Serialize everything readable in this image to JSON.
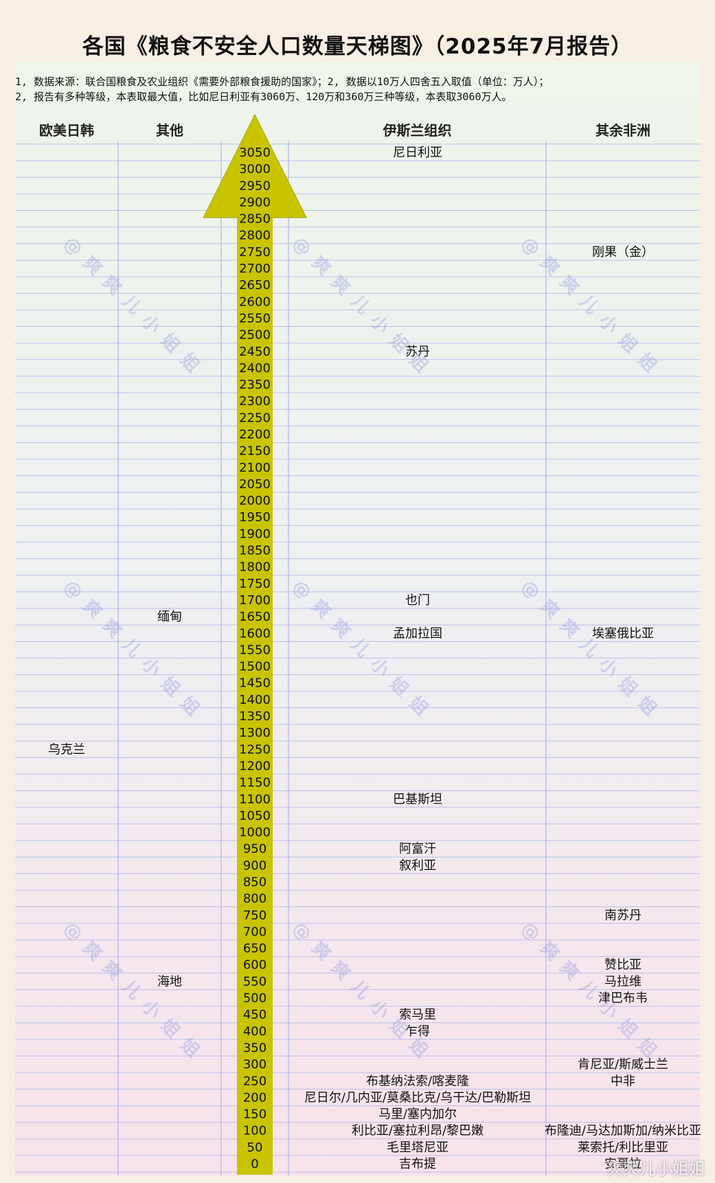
{
  "title": "各国《粮食不安全人口数量天梯图》（2025年7月报告）",
  "notes": [
    "1, 数据来源：联合国粮食及农业组织《需要外部粮食援助的国家》；2, 数据以10万人四舍五入取值（单位：万人）；",
    "2, 报告有多种等级，本表取最大值，比如尼日利亚有3060万、120万和360万三种等级，本表取3060万人。"
  ],
  "columns": [
    "欧美日韩",
    "其他",
    "伊斯兰组织",
    "其余非洲"
  ],
  "watermark": "@爽爽儿小姐姐",
  "footer_watermark": "爽爽儿小姐姐",
  "colors": {
    "arrow": "#c8c400",
    "arrow_edge": "#a8a400",
    "grid_line": "#b8bfe6",
    "column_line": "#a3a8e0"
  },
  "chart_data": {
    "type": "table",
    "axis": {
      "ticks": [
        0,
        50,
        100,
        150,
        200,
        250,
        300,
        350,
        400,
        450,
        500,
        550,
        600,
        650,
        700,
        750,
        800,
        850,
        900,
        950,
        1000,
        1050,
        1100,
        1150,
        1200,
        1250,
        1300,
        1350,
        1400,
        1450,
        1500,
        1550,
        1600,
        1650,
        1700,
        1750,
        1800,
        1850,
        1900,
        1950,
        2000,
        2050,
        2100,
        2150,
        2200,
        2250,
        2300,
        2350,
        2400,
        2450,
        2500,
        2550,
        2600,
        2650,
        2700,
        2750,
        2800,
        2850,
        2900,
        2950,
        3000,
        3050
      ],
      "range": [
        0,
        3050
      ],
      "unit": "万人"
    },
    "entries": [
      {
        "column": 0,
        "value": 1250,
        "label": "乌克兰"
      },
      {
        "column": 1,
        "value": 1650,
        "label": "缅甸"
      },
      {
        "column": 1,
        "value": 550,
        "label": "海地"
      },
      {
        "column": 2,
        "value": 3050,
        "label": "尼日利亚"
      },
      {
        "column": 2,
        "value": 2450,
        "label": "苏丹"
      },
      {
        "column": 2,
        "value": 1700,
        "label": "也门"
      },
      {
        "column": 2,
        "value": 1600,
        "label": "孟加拉国"
      },
      {
        "column": 2,
        "value": 1100,
        "label": "巴基斯坦"
      },
      {
        "column": 2,
        "value": 950,
        "label": "阿富汗"
      },
      {
        "column": 2,
        "value": 900,
        "label": "叙利亚"
      },
      {
        "column": 2,
        "value": 450,
        "label": "索马里"
      },
      {
        "column": 2,
        "value": 400,
        "label": "乍得"
      },
      {
        "column": 2,
        "value": 250,
        "label": "布基纳法索/喀麦隆"
      },
      {
        "column": 2,
        "value": 200,
        "label": "尼日尔/几内亚/莫桑比克/乌干达/巴勒斯坦"
      },
      {
        "column": 2,
        "value": 150,
        "label": "马里/塞内加尔"
      },
      {
        "column": 2,
        "value": 100,
        "label": "利比亚/塞拉利昂/黎巴嫩"
      },
      {
        "column": 2,
        "value": 50,
        "label": "毛里塔尼亚"
      },
      {
        "column": 2,
        "value": 0,
        "label": "吉布提"
      },
      {
        "column": 3,
        "value": 2750,
        "label": "刚果（金）"
      },
      {
        "column": 3,
        "value": 1600,
        "label": "埃塞俄比亚"
      },
      {
        "column": 3,
        "value": 750,
        "label": "南苏丹"
      },
      {
        "column": 3,
        "value": 600,
        "label": "赞比亚"
      },
      {
        "column": 3,
        "value": 550,
        "label": "马拉维"
      },
      {
        "column": 3,
        "value": 500,
        "label": "津巴布韦"
      },
      {
        "column": 3,
        "value": 300,
        "label": "肯尼亚/斯威士兰"
      },
      {
        "column": 3,
        "value": 250,
        "label": "中非"
      },
      {
        "column": 3,
        "value": 100,
        "label": "布隆迪/马达加斯加/纳米比亚"
      },
      {
        "column": 3,
        "value": 50,
        "label": "莱索托/利比里亚"
      },
      {
        "column": 3,
        "value": 0,
        "label": "安哥拉"
      }
    ]
  }
}
